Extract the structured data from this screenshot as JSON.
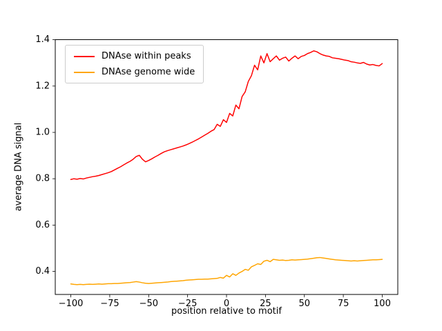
{
  "figure": {
    "background": "#ffffff"
  },
  "chart_data": {
    "type": "line",
    "title": "",
    "xlabel": "position relative to motif",
    "ylabel": "average DNA signal",
    "xlim": [
      -110,
      110
    ],
    "ylim": [
      0.3,
      1.4
    ],
    "xticks": [
      -100,
      -75,
      -50,
      -25,
      0,
      25,
      50,
      75,
      100
    ],
    "yticks": [
      0.4,
      0.6,
      0.8,
      1.0,
      1.2,
      1.4
    ],
    "grid": false,
    "legend_position": "upper left",
    "x": [
      -100,
      -98,
      -96,
      -94,
      -92,
      -90,
      -88,
      -86,
      -84,
      -82,
      -80,
      -78,
      -76,
      -74,
      -72,
      -70,
      -68,
      -66,
      -64,
      -62,
      -60,
      -58,
      -56,
      -54,
      -52,
      -50,
      -48,
      -46,
      -44,
      -42,
      -40,
      -38,
      -36,
      -34,
      -32,
      -30,
      -28,
      -26,
      -24,
      -22,
      -20,
      -18,
      -16,
      -14,
      -12,
      -10,
      -8,
      -6,
      -4,
      -2,
      0,
      2,
      4,
      6,
      8,
      10,
      12,
      14,
      16,
      18,
      20,
      22,
      24,
      26,
      28,
      30,
      32,
      34,
      36,
      38,
      40,
      42,
      44,
      46,
      48,
      50,
      52,
      54,
      56,
      58,
      60,
      62,
      64,
      66,
      68,
      70,
      72,
      74,
      76,
      78,
      80,
      82,
      84,
      86,
      88,
      90,
      92,
      94,
      96,
      98,
      100
    ],
    "series": [
      {
        "name": "DNAse within peaks",
        "color": "#ff0000",
        "values": [
          0.797,
          0.8,
          0.798,
          0.801,
          0.799,
          0.803,
          0.806,
          0.809,
          0.811,
          0.814,
          0.818,
          0.822,
          0.826,
          0.831,
          0.838,
          0.845,
          0.852,
          0.86,
          0.868,
          0.875,
          0.884,
          0.896,
          0.901,
          0.884,
          0.873,
          0.879,
          0.886,
          0.894,
          0.901,
          0.909,
          0.916,
          0.921,
          0.925,
          0.929,
          0.933,
          0.937,
          0.941,
          0.946,
          0.952,
          0.958,
          0.965,
          0.972,
          0.98,
          0.988,
          0.996,
          1.005,
          1.012,
          1.035,
          1.026,
          1.055,
          1.043,
          1.082,
          1.071,
          1.118,
          1.102,
          1.155,
          1.175,
          1.22,
          1.245,
          1.29,
          1.27,
          1.33,
          1.3,
          1.34,
          1.305,
          1.318,
          1.33,
          1.312,
          1.32,
          1.325,
          1.308,
          1.32,
          1.33,
          1.318,
          1.328,
          1.332,
          1.34,
          1.345,
          1.352,
          1.348,
          1.34,
          1.334,
          1.33,
          1.328,
          1.322,
          1.32,
          1.318,
          1.315,
          1.312,
          1.31,
          1.305,
          1.303,
          1.3,
          1.298,
          1.302,
          1.295,
          1.291,
          1.293,
          1.289,
          1.287,
          1.297
        ]
      },
      {
        "name": "DNAse genome wide",
        "color": "#ffa500",
        "values": [
          0.346,
          0.344,
          0.343,
          0.344,
          0.343,
          0.344,
          0.345,
          0.344,
          0.345,
          0.346,
          0.345,
          0.346,
          0.347,
          0.347,
          0.348,
          0.348,
          0.349,
          0.35,
          0.351,
          0.352,
          0.354,
          0.356,
          0.354,
          0.351,
          0.349,
          0.348,
          0.349,
          0.35,
          0.351,
          0.352,
          0.353,
          0.354,
          0.356,
          0.357,
          0.358,
          0.359,
          0.36,
          0.362,
          0.363,
          0.364,
          0.365,
          0.366,
          0.366,
          0.367,
          0.367,
          0.368,
          0.369,
          0.37,
          0.374,
          0.371,
          0.383,
          0.376,
          0.39,
          0.383,
          0.393,
          0.4,
          0.409,
          0.405,
          0.42,
          0.426,
          0.433,
          0.43,
          0.444,
          0.448,
          0.442,
          0.452,
          0.45,
          0.448,
          0.449,
          0.447,
          0.448,
          0.45,
          0.449,
          0.45,
          0.451,
          0.452,
          0.453,
          0.455,
          0.457,
          0.459,
          0.46,
          0.458,
          0.456,
          0.454,
          0.452,
          0.45,
          0.449,
          0.448,
          0.447,
          0.446,
          0.445,
          0.446,
          0.445,
          0.446,
          0.447,
          0.448,
          0.449,
          0.45,
          0.45,
          0.451,
          0.452
        ]
      }
    ]
  }
}
